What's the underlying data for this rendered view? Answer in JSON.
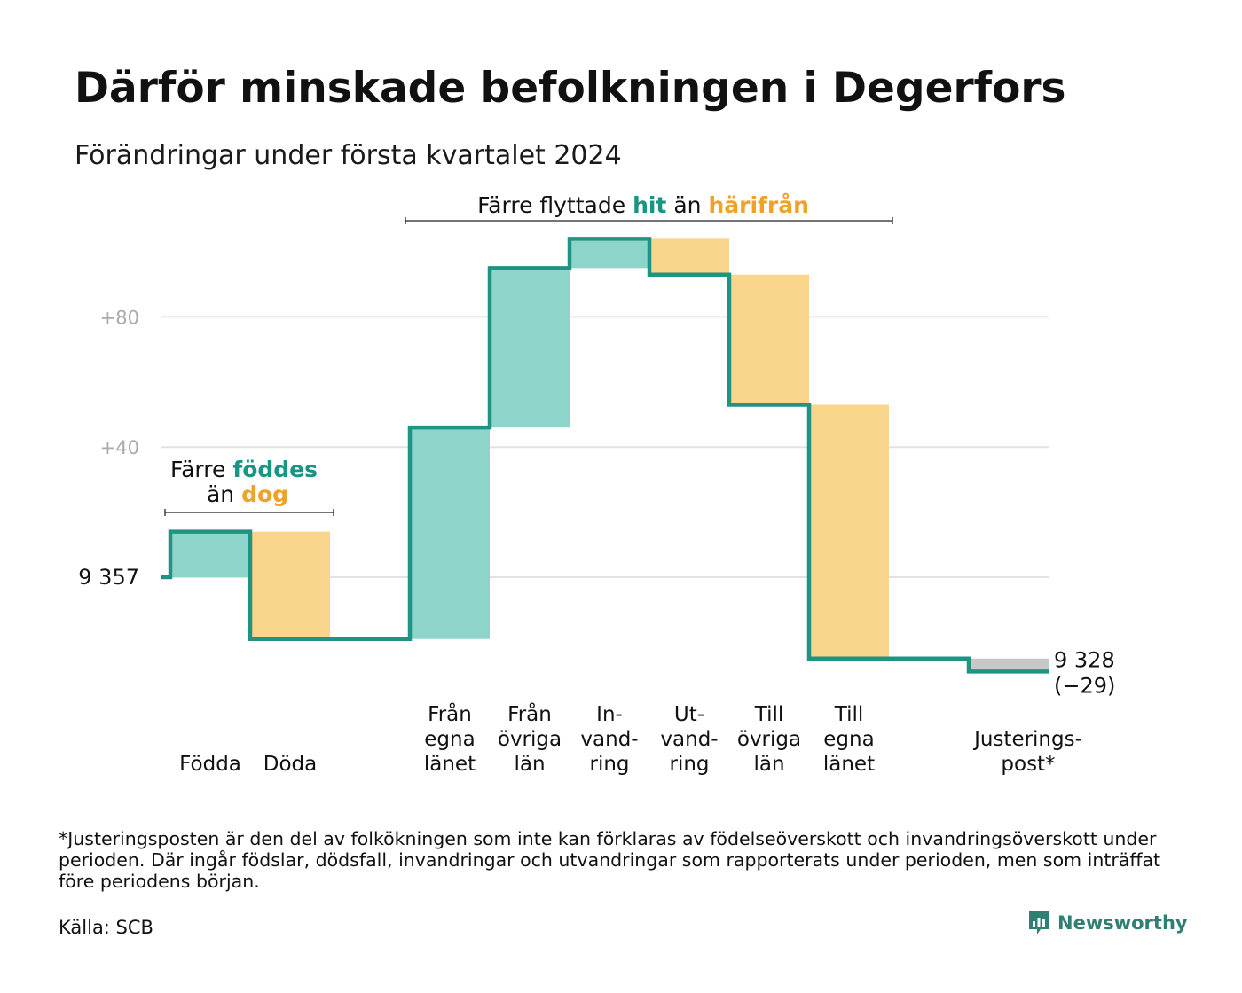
{
  "title": "Därför minskade befolkningen i Degerfors",
  "subtitle": "Förändringar under första kvartalet 2024",
  "footnote": "*Justeringsposten är den del av folkökningen som inte kan förklaras av födelseöverskott och invandringsöverskott under perioden. Där ingår födslar, dödsfall, invandringar och utvandringar som rapporterats under perioden, men som inträffat före periodens början.",
  "source": "Källa: SCB",
  "brand": "Newsworthy",
  "colors": {
    "line": "#1f9482",
    "inflow": "#8dd5cb",
    "outflow": "#fad58c",
    "adjustment": "#c8c8c8",
    "grid": "#e2e2e2",
    "tick": "#aaaaaa",
    "hit_text": "#1a9484",
    "harifran_text": "#f0a227",
    "brand": "#2f7f73"
  },
  "annotations": {
    "births": {
      "line1_pre": "Färre ",
      "line1_hi": "föddes",
      "line2_pre": "än ",
      "line2_hi": "dog"
    },
    "migration": {
      "pre": "Färre flyttade ",
      "hi1": "hit",
      "mid": " än ",
      "hi2": "härifrån"
    }
  },
  "chart_data": {
    "type": "waterfall",
    "start_label": "9 357",
    "start_value": 9357,
    "end_label_value": "9 328",
    "end_label_change": "(−29)",
    "end_value": 9328,
    "y_ticks": [
      {
        "offset": 80,
        "label": "+80"
      },
      {
        "offset": 40,
        "label": "+40"
      }
    ],
    "grid": true,
    "steps": [
      {
        "label_lines": [
          "Födda"
        ],
        "change": 14,
        "kind": "inflow"
      },
      {
        "label_lines": [
          "Döda"
        ],
        "change": -33,
        "kind": "outflow"
      },
      {
        "label_lines": [],
        "change": 0,
        "kind": "gap"
      },
      {
        "label_lines": [
          "Från",
          "egna",
          "länet"
        ],
        "change": 65,
        "kind": "inflow"
      },
      {
        "label_lines": [
          "Från",
          "övriga",
          "län"
        ],
        "change": 49,
        "kind": "inflow"
      },
      {
        "label_lines": [
          "In-",
          "vand-",
          "ring"
        ],
        "change": 9,
        "kind": "inflow"
      },
      {
        "label_lines": [
          "Ut-",
          "vand-",
          "ring"
        ],
        "change": -11,
        "kind": "outflow"
      },
      {
        "label_lines": [
          "Till",
          "övriga",
          "län"
        ],
        "change": -40,
        "kind": "outflow"
      },
      {
        "label_lines": [
          "Till",
          "egna",
          "länet"
        ],
        "change": -78,
        "kind": "outflow"
      },
      {
        "label_lines": [],
        "change": 0,
        "kind": "gap"
      },
      {
        "label_lines": [
          "Justerings-",
          "post*"
        ],
        "change": -4,
        "kind": "adjustment"
      }
    ]
  }
}
